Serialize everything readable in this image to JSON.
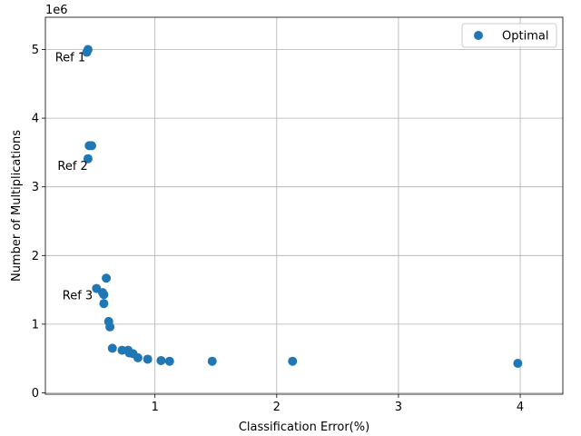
{
  "chart_data": {
    "type": "scatter",
    "title": "",
    "xlabel": "Classification Error(%)",
    "ylabel": "Number of Multiplications",
    "y_offset_label": "1e6",
    "xlim": [
      0.1,
      4.35
    ],
    "ylim": [
      -0.02,
      5.47
    ],
    "x_ticks": [
      1,
      2,
      3,
      4
    ],
    "x_tick_labels": [
      "1",
      "2",
      "3",
      "4"
    ],
    "y_ticks": [
      0,
      1,
      2,
      3,
      4,
      5
    ],
    "y_tick_labels": [
      "0",
      "1",
      "2",
      "3",
      "4",
      "5"
    ],
    "y_scale": 1000000,
    "grid": true,
    "legend_position": "top-right",
    "color": "#1f77b4",
    "series": [
      {
        "name": "Optimal",
        "points": [
          [
            0.45,
            5.0
          ],
          [
            0.44,
            4.96
          ],
          [
            0.46,
            3.6
          ],
          [
            0.48,
            3.6
          ],
          [
            0.45,
            3.41
          ],
          [
            0.6,
            1.67
          ],
          [
            0.52,
            1.52
          ],
          [
            0.57,
            1.46
          ],
          [
            0.58,
            1.43
          ],
          [
            0.58,
            1.3
          ],
          [
            0.62,
            1.04
          ],
          [
            0.63,
            0.96
          ],
          [
            0.65,
            0.65
          ],
          [
            0.73,
            0.62
          ],
          [
            0.78,
            0.62
          ],
          [
            0.79,
            0.58
          ],
          [
            0.82,
            0.57
          ],
          [
            0.86,
            0.51
          ],
          [
            0.94,
            0.49
          ],
          [
            1.05,
            0.47
          ],
          [
            1.12,
            0.46
          ],
          [
            1.47,
            0.46
          ],
          [
            2.13,
            0.46
          ],
          [
            3.98,
            0.43
          ]
        ]
      }
    ],
    "annotations": [
      {
        "text": "Ref 1",
        "x": 0.18,
        "y": 4.83
      },
      {
        "text": "Ref 2",
        "x": 0.2,
        "y": 3.25
      },
      {
        "text": "Ref 3",
        "x": 0.24,
        "y": 1.36
      }
    ]
  }
}
